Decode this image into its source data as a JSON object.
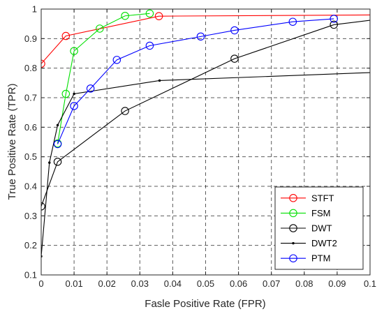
{
  "chart_data": {
    "type": "line",
    "title": "",
    "xlabel": "Fasle Positive Rate (FPR)",
    "ylabel": "True Positive Rate (TPR)",
    "xlim": [
      0,
      0.1
    ],
    "ylim": [
      0.1,
      1
    ],
    "xticks": [
      0,
      0.01,
      0.02,
      0.03,
      0.04,
      0.05,
      0.06,
      0.07,
      0.08,
      0.09,
      0.1
    ],
    "xtick_labels": [
      "0",
      "0.01",
      "0.02",
      "0.03",
      "0.04",
      "0.05",
      "0.06",
      "0.07",
      "0.08",
      "0.09",
      "0.1"
    ],
    "yticks": [
      0.1,
      0.2,
      0.3,
      0.4,
      0.5,
      0.6,
      0.7,
      0.8,
      0.9,
      1
    ],
    "ytick_labels": [
      "0.1",
      "0.2",
      "0.3",
      "0.4",
      "0.5",
      "0.6",
      "0.7",
      "0.8",
      "0.9",
      "1"
    ],
    "grid": true,
    "grid_style": "dashed",
    "legend_position": "bottom-right",
    "series": [
      {
        "name": "STFT",
        "color": "#ff0000",
        "marker": "circle",
        "points": [
          [
            0,
            0.815
          ],
          [
            0.0075,
            0.909
          ],
          [
            0.0358,
            0.976
          ]
        ],
        "tail": [
          [
            0.0358,
            0.976
          ],
          [
            0.1,
            0.98
          ]
        ]
      },
      {
        "name": "FSM",
        "color": "#00e000",
        "marker": "circle",
        "points": [
          [
            0.005,
            0.545
          ],
          [
            0.0075,
            0.713
          ],
          [
            0.01,
            0.858
          ],
          [
            0.0178,
            0.934
          ],
          [
            0.0255,
            0.977
          ],
          [
            0.033,
            0.985
          ]
        ],
        "tail": []
      },
      {
        "name": "DWT",
        "color": "#000000",
        "marker": "circle",
        "points": [
          [
            0,
            0.332
          ],
          [
            0.005,
            0.483
          ],
          [
            0.0255,
            0.655
          ],
          [
            0.0588,
            0.832
          ],
          [
            0.089,
            0.947
          ]
        ],
        "tail": [
          [
            0.089,
            0.947
          ],
          [
            0.1,
            0.962
          ]
        ]
      },
      {
        "name": "DWT2",
        "color": "#000000",
        "marker": "dot",
        "points": [
          [
            0,
            0.163
          ],
          [
            0.0025,
            0.48
          ],
          [
            0.005,
            0.607
          ],
          [
            0.01,
            0.713
          ],
          [
            0.036,
            0.758
          ]
        ],
        "tail": [
          [
            0.036,
            0.758
          ],
          [
            0.1,
            0.785
          ]
        ]
      },
      {
        "name": "PTM",
        "color": "#0000ff",
        "marker": "circle",
        "points": [
          [
            0.005,
            0.543
          ],
          [
            0.01,
            0.672
          ],
          [
            0.015,
            0.731
          ],
          [
            0.023,
            0.828
          ],
          [
            0.033,
            0.876
          ],
          [
            0.0485,
            0.907
          ],
          [
            0.0588,
            0.928
          ],
          [
            0.0765,
            0.957
          ],
          [
            0.089,
            0.967
          ]
        ],
        "tail": []
      }
    ]
  }
}
